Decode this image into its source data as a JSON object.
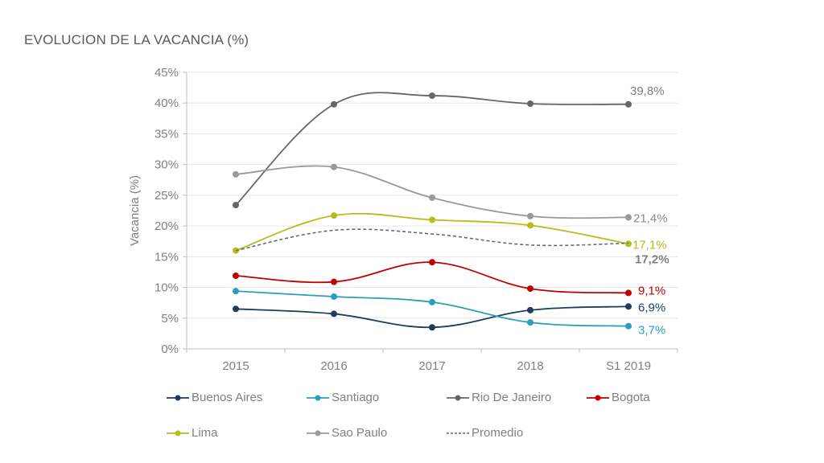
{
  "title": "EVOLUCION DE LA VACANCIA  (%)",
  "chart_data": {
    "type": "line",
    "title": "EVOLUCION DE LA VACANCIA  (%)",
    "xlabel": "",
    "ylabel": "Vacancia (%)",
    "categories": [
      "2015",
      "2016",
      "2017",
      "2018",
      "S1 2019"
    ],
    "ylim": [
      0,
      45
    ],
    "yticks": [
      0,
      5,
      10,
      15,
      20,
      25,
      30,
      35,
      40,
      45
    ],
    "ytick_labels": [
      "0%",
      "5%",
      "10%",
      "15%",
      "20%",
      "25%",
      "30%",
      "35%",
      "40%",
      "45%"
    ],
    "grid": true,
    "legend_position": "bottom",
    "series": [
      {
        "name": "Buenos Aires",
        "color": "#1f3c5a",
        "dashed": false,
        "markers": true,
        "values": [
          6.5,
          5.7,
          3.5,
          6.3,
          6.9
        ],
        "end_label": "6,9%",
        "end_label_bold": false
      },
      {
        "name": "Santiago",
        "color": "#2a9fbc",
        "dashed": false,
        "markers": true,
        "values": [
          9.4,
          8.5,
          7.6,
          4.3,
          3.7
        ],
        "end_label": "3,7%",
        "end_label_bold": false
      },
      {
        "name": "Rio De Janeiro",
        "color": "#666666",
        "dashed": false,
        "markers": true,
        "values": [
          23.4,
          39.8,
          41.2,
          39.9,
          39.8
        ],
        "end_label": "39,8%",
        "end_label_bold": false
      },
      {
        "name": "Bogota",
        "color": "#c00000",
        "dashed": false,
        "markers": true,
        "values": [
          11.9,
          10.9,
          14.1,
          9.8,
          9.1
        ],
        "end_label": "9,1%",
        "end_label_bold": false
      },
      {
        "name": "Lima",
        "color": "#b5bd18",
        "dashed": false,
        "markers": true,
        "values": [
          16.0,
          21.7,
          21.0,
          20.1,
          17.1
        ],
        "end_label": "17,1%",
        "end_label_bold": false
      },
      {
        "name": "Sao Paulo",
        "color": "#999999",
        "dashed": false,
        "markers": true,
        "values": [
          28.4,
          29.6,
          24.6,
          21.6,
          21.4
        ],
        "end_label": "21,4%",
        "end_label_bold": false
      },
      {
        "name": "Promedio",
        "color": "#5f6a7a",
        "dashed": true,
        "markers": false,
        "values": [
          16.0,
          19.3,
          18.7,
          16.9,
          17.2
        ],
        "end_label": "17,2%",
        "end_label_bold": true
      }
    ]
  }
}
